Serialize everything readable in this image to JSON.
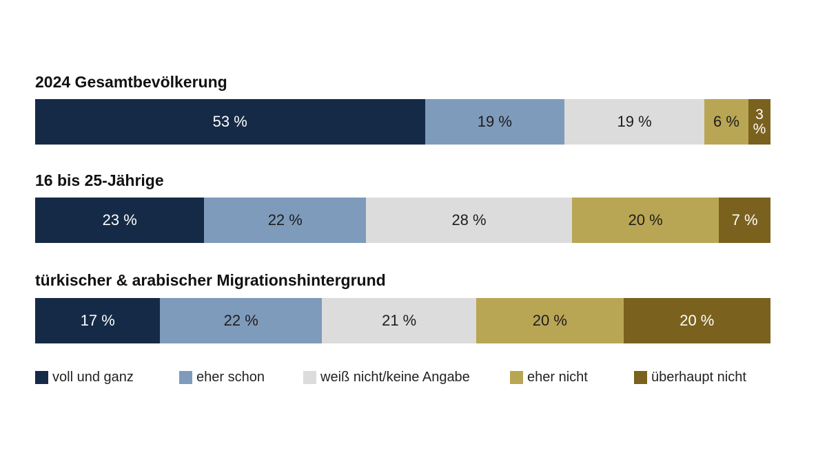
{
  "chart_data": {
    "type": "bar",
    "orientation": "horizontal",
    "stacked": true,
    "normalized": true,
    "categories": [
      "2024 Gesamtbevölkerung",
      "16 bis 25-Jährige",
      "türkischer & arabischer Migrationshintergrund"
    ],
    "series": [
      {
        "name": "voll und ganz",
        "color": "#152a46",
        "text_color": "#ffffff",
        "values": [
          53,
          23,
          17
        ],
        "labels": [
          "53 %",
          "23 %",
          "17 %"
        ]
      },
      {
        "name": "eher schon",
        "color": "#7f9bbb",
        "text_color": "#1d1d1d",
        "values": [
          19,
          22,
          22
        ],
        "labels": [
          "19 %",
          "22 %",
          "22 %"
        ]
      },
      {
        "name": "weiß nicht/keine Angabe",
        "color": "#dcdcdc",
        "text_color": "#1d1d1d",
        "values": [
          19,
          28,
          21
        ],
        "labels": [
          "19 %",
          "28 %",
          "21 %"
        ]
      },
      {
        "name": "eher nicht",
        "color": "#b9a654",
        "text_color": "#1d1d1d",
        "values": [
          6,
          20,
          20
        ],
        "labels": [
          "6 %",
          "20 %",
          "20 %"
        ]
      },
      {
        "name": "überhaupt nicht",
        "color": "#7a611e",
        "text_color": "#ffffff",
        "values": [
          3,
          7,
          20
        ],
        "labels": [
          "3 %",
          "7 %",
          "20 %"
        ]
      }
    ],
    "legend_position": "bottom",
    "grid": false
  }
}
